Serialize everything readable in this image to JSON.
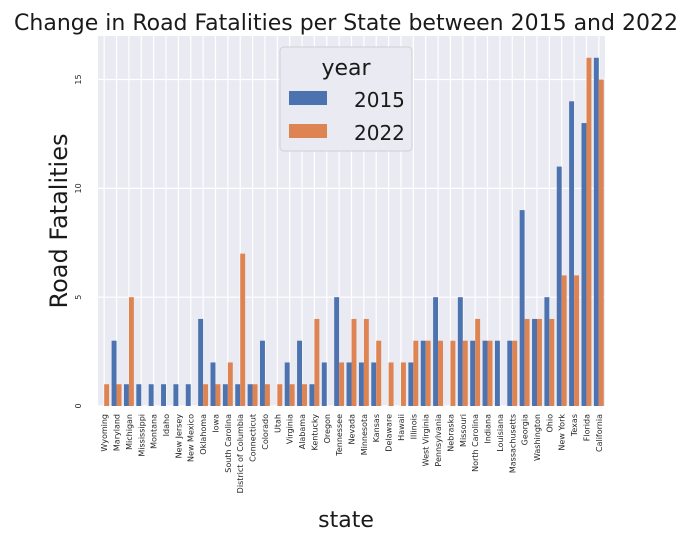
{
  "chart_data": {
    "type": "bar",
    "title": "Change in Road Fatalities per State between 2015 and 2022",
    "xlabel": "state",
    "ylabel": "Road Fatalities",
    "ylim": [
      0,
      17
    ],
    "yticks": [
      0,
      5,
      10,
      15
    ],
    "grid": true,
    "legend": {
      "title": "year",
      "placement": "top-center"
    },
    "categories": [
      "Wyoming",
      "Maryland",
      "Michigan",
      "Mississippi",
      "Montana",
      "Idaho",
      "New Jersey",
      "New Mexico",
      "Oklahoma",
      "Iowa",
      "South Carolina",
      "District of Columbia",
      "Connecticut",
      "Colorado",
      "Utah",
      "Virginia",
      "Alabama",
      "Kentucky",
      "Oregon",
      "Tennessee",
      "Nevada",
      "Minnesota",
      "Kansas",
      "Delaware",
      "Hawaii",
      "Illinois",
      "West Virginia",
      "Pennsylvania",
      "Nebraska",
      "Missouri",
      "North Carolina",
      "Indiana",
      "Louisiana",
      "Massachusetts",
      "Georgia",
      "Washington",
      "Ohio",
      "New York",
      "Texas",
      "Florida",
      "California"
    ],
    "series": [
      {
        "name": "2015",
        "color": "#4c72b0",
        "values": [
          null,
          3,
          1,
          1,
          1,
          1,
          1,
          1,
          4,
          2,
          1,
          1,
          1,
          3,
          null,
          2,
          3,
          1,
          2,
          5,
          2,
          2,
          2,
          null,
          null,
          2,
          3,
          5,
          null,
          5,
          3,
          3,
          3,
          3,
          9,
          4,
          5,
          11,
          14,
          13,
          16
        ]
      },
      {
        "name": "2022",
        "color": "#dd8452",
        "values": [
          1,
          1,
          5,
          null,
          null,
          null,
          null,
          null,
          1,
          1,
          2,
          7,
          1,
          1,
          1,
          1,
          1,
          4,
          null,
          2,
          4,
          4,
          3,
          2,
          2,
          3,
          3,
          3,
          3,
          3,
          4,
          3,
          null,
          3,
          4,
          4,
          4,
          6,
          6,
          16,
          15
        ]
      }
    ]
  }
}
